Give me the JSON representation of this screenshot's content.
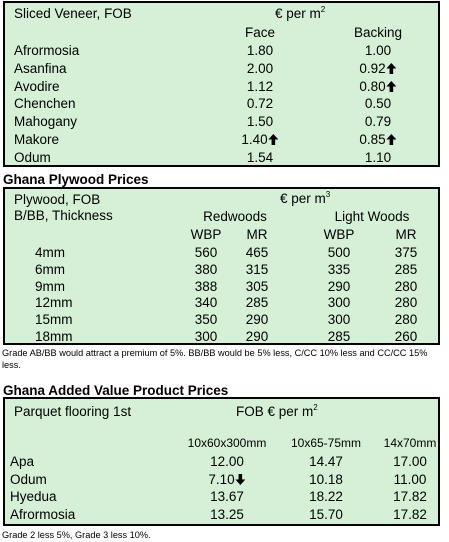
{
  "veneer": {
    "title": "Sliced Veneer, FOB",
    "unit": "€ per m",
    "unit_sup": "2",
    "columns": [
      "Face",
      "Backing"
    ],
    "rows": [
      {
        "name": "Afrormosia",
        "face": "1.80",
        "face_trend": "",
        "backing": "1.00",
        "backing_trend": ""
      },
      {
        "name": "Asanfina",
        "face": "2.00",
        "face_trend": "",
        "backing": "0.92",
        "backing_trend": "up"
      },
      {
        "name": "Avodire",
        "face": "1.12",
        "face_trend": "",
        "backing": "0.80",
        "backing_trend": "up"
      },
      {
        "name": "Chenchen",
        "face": "0.72",
        "face_trend": "",
        "backing": "0.50",
        "backing_trend": ""
      },
      {
        "name": "Mahogany",
        "face": "1.50",
        "face_trend": "",
        "backing": "0.79",
        "backing_trend": ""
      },
      {
        "name": "Makore",
        "face": "1.40",
        "face_trend": "up",
        "backing": "0.85",
        "backing_trend": "up"
      },
      {
        "name": "Odum",
        "face": "1.54",
        "face_trend": "",
        "backing": "1.10",
        "backing_trend": ""
      }
    ]
  },
  "plywood": {
    "heading": "Ghana Plywood Prices",
    "title_line1": "Plywood, FOB",
    "title_line2": "B/BB, Thickness",
    "unit": "€ per m",
    "unit_sup": "3",
    "groups": [
      "Redwoods",
      "Light Woods"
    ],
    "subcolumns": [
      "WBP",
      "MR",
      "WBP",
      "MR"
    ],
    "rows": [
      {
        "thickness": "4mm",
        "values": [
          "560",
          "465",
          "500",
          "375"
        ]
      },
      {
        "thickness": "6mm",
        "values": [
          "380",
          "315",
          "335",
          "285"
        ]
      },
      {
        "thickness": "9mm",
        "values": [
          "388",
          "305",
          "290",
          "280"
        ]
      },
      {
        "thickness": "12mm",
        "values": [
          "340",
          "285",
          "300",
          "280"
        ]
      },
      {
        "thickness": "15mm",
        "values": [
          "350",
          "290",
          "300",
          "280"
        ]
      },
      {
        "thickness": "18mm",
        "values": [
          "300",
          "290",
          "285",
          "260"
        ]
      }
    ],
    "note": "Grade AB/BB would attract a premium of 5%. BB/BB would be 5% less, C/CC 10% less and CC/CC 15% less."
  },
  "parquet": {
    "heading": "Ghana Added Value Product Prices",
    "title": "Parquet flooring 1st",
    "unit": "FOB € per m",
    "unit_sup": "2",
    "columns": [
      "10x60x300mm",
      "10x65-75mm",
      "14x70mm"
    ],
    "rows": [
      {
        "name": "Apa",
        "values": [
          "12.00",
          "14.47",
          "17.00"
        ],
        "trends": [
          "",
          "",
          ""
        ]
      },
      {
        "name": "Odum",
        "values": [
          "7.10",
          "10.18",
          "11.00"
        ],
        "trends": [
          "down",
          "",
          ""
        ]
      },
      {
        "name": "Hyedua",
        "values": [
          "13.67",
          "18.22",
          "17.82"
        ],
        "trends": [
          "",
          "",
          ""
        ]
      },
      {
        "name": "Afrormosia",
        "values": [
          "13.25",
          "15.70",
          "17.82"
        ],
        "trends": [
          "",
          "",
          ""
        ]
      }
    ],
    "note": "Grade 2 less 5%, Grade 3 less 10%."
  }
}
